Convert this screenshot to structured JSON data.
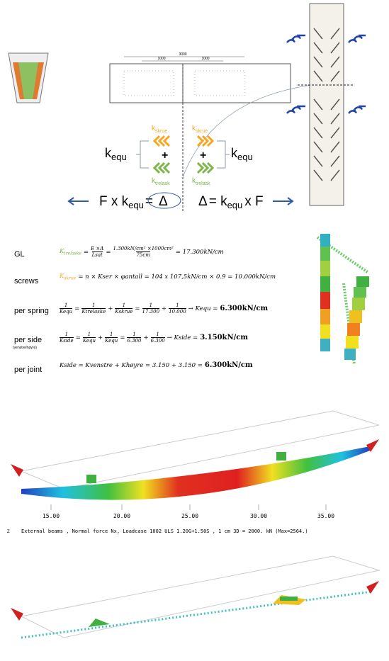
{
  "diagram": {
    "dims": [
      "3000",
      "1000",
      "1000"
    ],
    "k": "k",
    "skrue": "skrue",
    "trelask": "trelask",
    "equ": "equ",
    "plus": "+"
  },
  "equation": {
    "left": "F x k",
    "sub": "equ",
    "eq_left": "=",
    "delta": "Δ",
    "eq_right": "= k",
    "right_tail": "x F"
  },
  "formulas": [
    {
      "label": "GL",
      "parts": [
        {
          "text": "K",
          "sub": "trelaske",
          "color": "#7ab648"
        },
        "=",
        {
          "num": "E ×A",
          "den": "Lsat"
        },
        "=",
        {
          "num": "1.300kN/cm² ×1000cm²",
          "den": "75cm"
        },
        "= 17.300kN/cm"
      ]
    },
    {
      "label": "screws",
      "parts": [
        {
          "text": "K",
          "sub": "skrue",
          "color": "#f5a623"
        },
        "= n × Kser × φantall = 104 x 107,5kN/cm × 0.9 = 10.000kN/cm"
      ]
    },
    {
      "label": "per spring",
      "parts": [
        {
          "num": "1",
          "den": "Kequ"
        },
        "=",
        {
          "num": "1",
          "den": "Ktrelaske"
        },
        "+",
        {
          "num": "1",
          "den": "Kskrue"
        },
        "=",
        {
          "num": "1",
          "den": "17.300"
        },
        "+",
        {
          "num": "1",
          "den": "10.000"
        },
        "→ Kequ =",
        {
          "bold": "6.300kN/cm"
        }
      ]
    },
    {
      "label": "per side",
      "sublabel": "(venstre/høyre)",
      "parts": [
        {
          "num": "1",
          "den": "Kside"
        },
        "=",
        {
          "num": "1",
          "den": "Kequ"
        },
        "+",
        {
          "num": "1",
          "den": "Kequ"
        },
        "=",
        {
          "num": "1",
          "den": "6.300"
        },
        "+",
        {
          "num": "1",
          "den": "6.300"
        },
        "→ Kside =",
        {
          "bold": "3.150kN/cm"
        }
      ]
    },
    {
      "label": "per joint",
      "parts": [
        "Kside = Kvenstre + Khøyre = 3.150 + 3.150 =",
        {
          "bold": "6.300kN/cm"
        }
      ]
    }
  ],
  "beam_plot": {
    "x_labels": [
      "15.00",
      "20.00",
      "25.00",
      "30.00",
      "35.00"
    ],
    "axis_letter": "Z",
    "caption": "External beams , Normal force Nx, Loadcase 1002 ULS 1.20G+1.50S   , 1 cm 3D = 2000. kN (Max=2564.)"
  }
}
